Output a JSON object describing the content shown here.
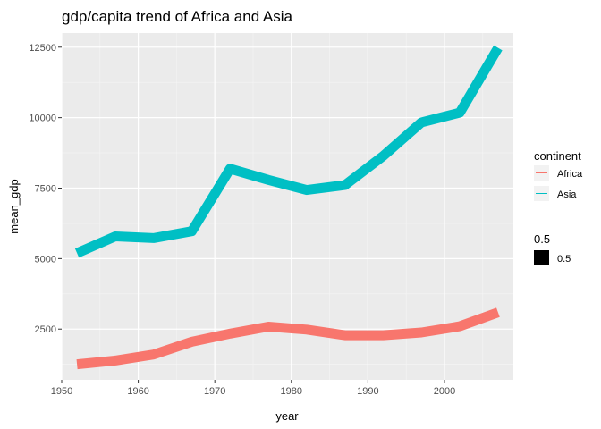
{
  "chart_data": {
    "type": "line",
    "title": "gdp/capita trend of Africa and Asia",
    "xlabel": "year",
    "ylabel": "mean_gdp",
    "xlim": [
      1950,
      2009
    ],
    "ylim": [
      700,
      13000
    ],
    "x_ticks": [
      1950,
      1960,
      1970,
      1980,
      1990,
      2000
    ],
    "y_ticks": [
      2500,
      5000,
      7500,
      10000,
      12500
    ],
    "grid": true,
    "legend_placement": "right",
    "x": [
      1952,
      1957,
      1962,
      1967,
      1972,
      1977,
      1982,
      1987,
      1992,
      1997,
      2002,
      2007
    ],
    "series": [
      {
        "name": "Africa",
        "color": "#f8766d",
        "values": [
          1253,
          1385,
          1598,
          2050,
          2340,
          2586,
          2482,
          2283,
          2282,
          2379,
          2599,
          3089
        ]
      },
      {
        "name": "Asia",
        "color": "#00bfc4",
        "values": [
          5195,
          5788,
          5729,
          5971,
          8187,
          7791,
          7434,
          7608,
          8640,
          9834,
          10174,
          12473
        ]
      }
    ],
    "legend": {
      "continent_title": "continent",
      "size_title": "0.5",
      "size_label": "0.5"
    }
  }
}
